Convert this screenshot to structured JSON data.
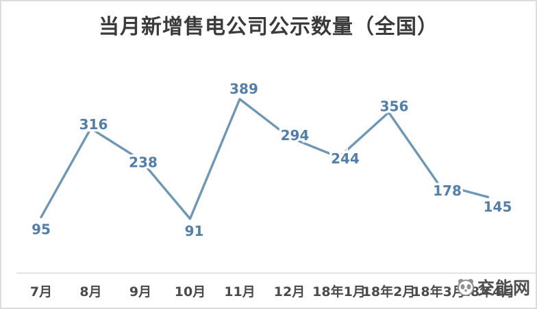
{
  "title": "当月新增售电公司公示数量（全国）",
  "watermark": {
    "text": "交能网",
    "logo": "panda-logo"
  },
  "chart_data": {
    "type": "line",
    "title": "当月新增售电公司公示数量（全国）",
    "categories": [
      "7月",
      "8月",
      "9月",
      "10月",
      "11月",
      "12月",
      "18年1月",
      "18年2月",
      "18年3月",
      "18年4月"
    ],
    "values": [
      95,
      316,
      238,
      91,
      389,
      294,
      244,
      356,
      178,
      145
    ],
    "series": [
      {
        "name": "当月新增售电公司公示数量",
        "values": [
          95,
          316,
          238,
          91,
          389,
          294,
          244,
          356,
          178,
          145
        ]
      }
    ],
    "xlabel": "",
    "ylabel": "",
    "ylim": [
      0,
      420
    ],
    "y_axis_visible": false,
    "gridlines": false,
    "legend": "none",
    "data_labels_visible": true,
    "label_placements": [
      "below",
      "above",
      "center",
      "below",
      "above",
      "center",
      "center",
      "above",
      "below-right",
      "below-right"
    ],
    "colors": {
      "line": "#6e96b5",
      "data_label": "#527ea8",
      "axis_label": "#4a4a4a",
      "axis_line": "#d9d9d9",
      "title": "#3a3a3a",
      "background": "#ffffff",
      "frame_border": "#dcdcdc"
    }
  }
}
